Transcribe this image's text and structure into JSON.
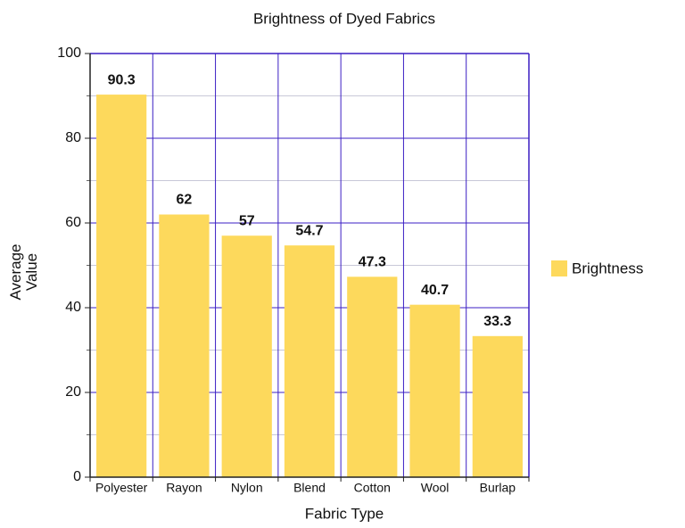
{
  "chart_data": {
    "type": "bar",
    "title": "Brightness of Dyed Fabrics",
    "x_label": "Fabric Type",
    "y_label": "Average Value",
    "categories": [
      "Polyester",
      "Rayon",
      "Nylon",
      "Blend",
      "Cotton",
      "Wool",
      "Burlap"
    ],
    "series": [
      {
        "name": "Brightness",
        "color": "#fdd95c",
        "values": [
          90.3,
          62,
          57,
          54.7,
          47.3,
          40.7,
          33.3
        ]
      }
    ],
    "ylim": [
      0,
      100
    ],
    "yticks": [
      0,
      20,
      40,
      60,
      80,
      100
    ],
    "grid": true,
    "legend": "right"
  }
}
